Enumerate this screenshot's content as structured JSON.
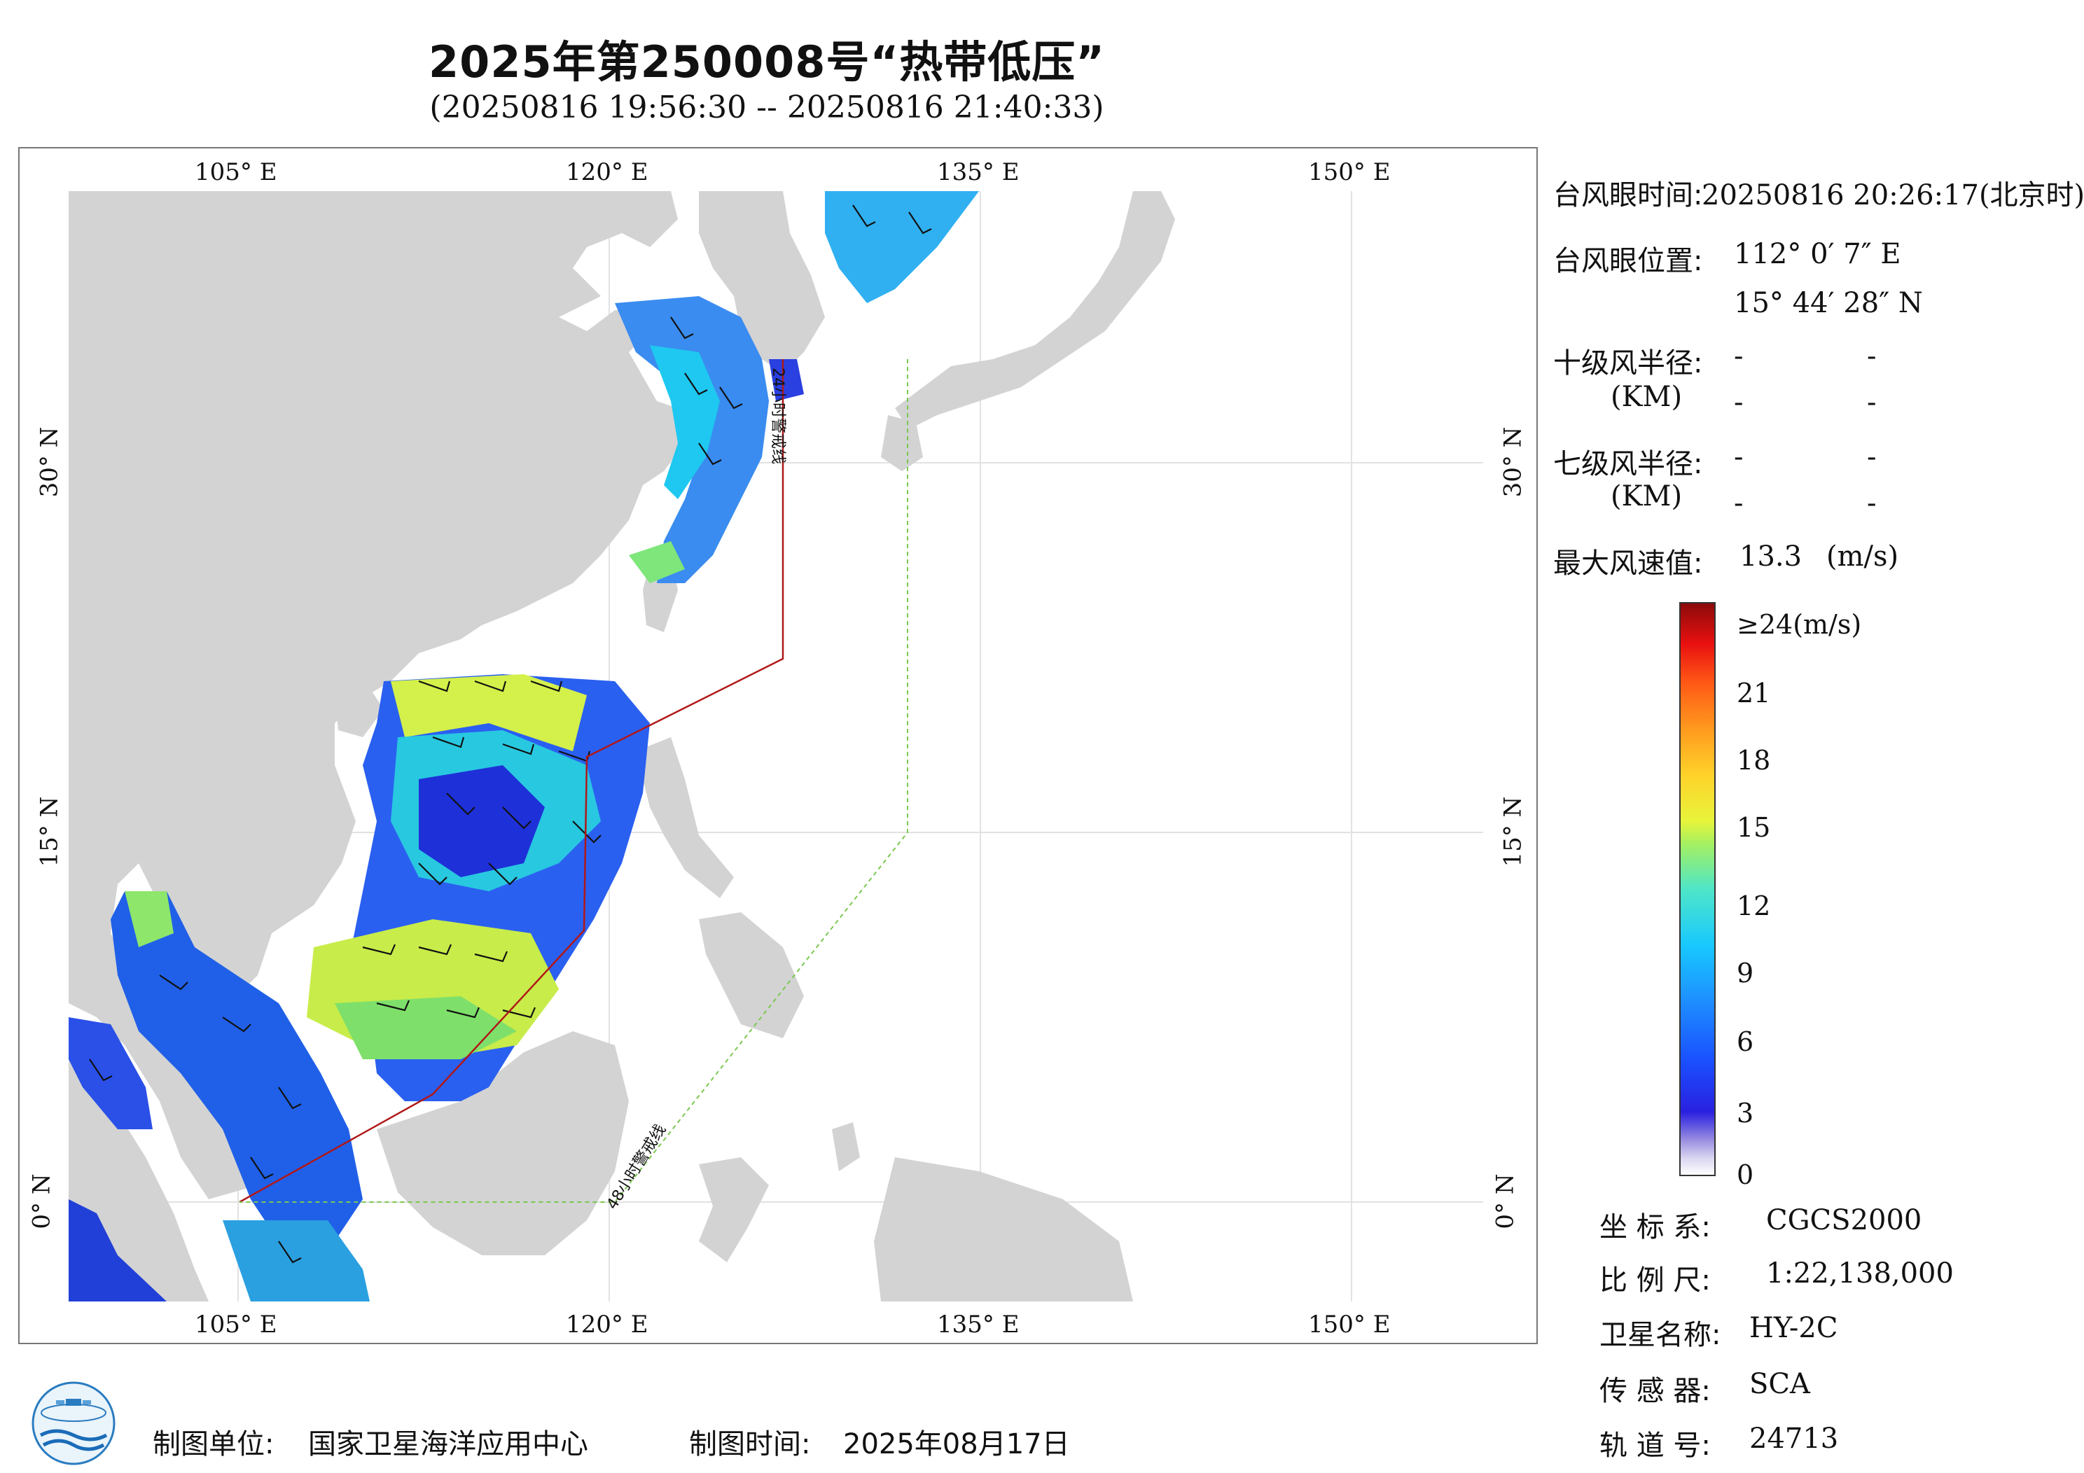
{
  "title": "2025年第250008号“热带低压”",
  "subtitle": "(20250816 19:56:30 -- 20250816 21:40:33)",
  "axes": {
    "lon_top": [
      "105° E",
      "120° E",
      "135° E",
      "150° E"
    ],
    "lon_bottom": [
      "105° E",
      "120° E",
      "135° E",
      "150° E"
    ],
    "lat_left": [
      "30° N",
      "15° N",
      "0° N"
    ],
    "lat_right": [
      "30° N",
      "15° N",
      "0° N"
    ]
  },
  "map": {
    "line_24h_label": "24小时警戒线",
    "line_48h_label": "48小时警戒线",
    "colors": {
      "land": "#d3d3d3",
      "sea": "#ffffff",
      "line_24h": "#b01818",
      "line_48h": "#7cc850"
    }
  },
  "info": {
    "eye_time_label": "台风眼时间:",
    "eye_time_value": "20250816 20:26:17(北京时)",
    "eye_pos_label": "台风眼位置:",
    "eye_lon": "112° 0′ 7″ E",
    "eye_lat": "15° 44′ 28″ N",
    "r10_label": "十级风半径:",
    "r10_unit": "(KM)",
    "r7_label": "七级风半径:",
    "r7_unit": "(KM)",
    "dash": "-",
    "max_wind_label": "最大风速值:",
    "max_wind_value": "13.3",
    "max_wind_unit": "(m/s)"
  },
  "colorbar": {
    "top_label": "≥24(m/s)",
    "ticks": [
      "21",
      "18",
      "15",
      "12",
      "9",
      "6",
      "3",
      "0"
    ]
  },
  "meta": {
    "crs_label": "坐 标 系:",
    "crs_value": "CGCS2000",
    "scale_label": "比 例 尺:",
    "scale_value": "1:22,138,000",
    "sat_label": "卫星名称:",
    "sat_value": "HY-2C",
    "sensor_label": "传 感 器:",
    "sensor_value": "SCA",
    "orbit_label": "轨 道 号:",
    "orbit_value": "24713"
  },
  "footer": {
    "unit_label": "制图单位:",
    "unit_value": "国家卫星海洋应用中心",
    "time_label": "制图时间:",
    "time_value": "2025年08月17日"
  }
}
